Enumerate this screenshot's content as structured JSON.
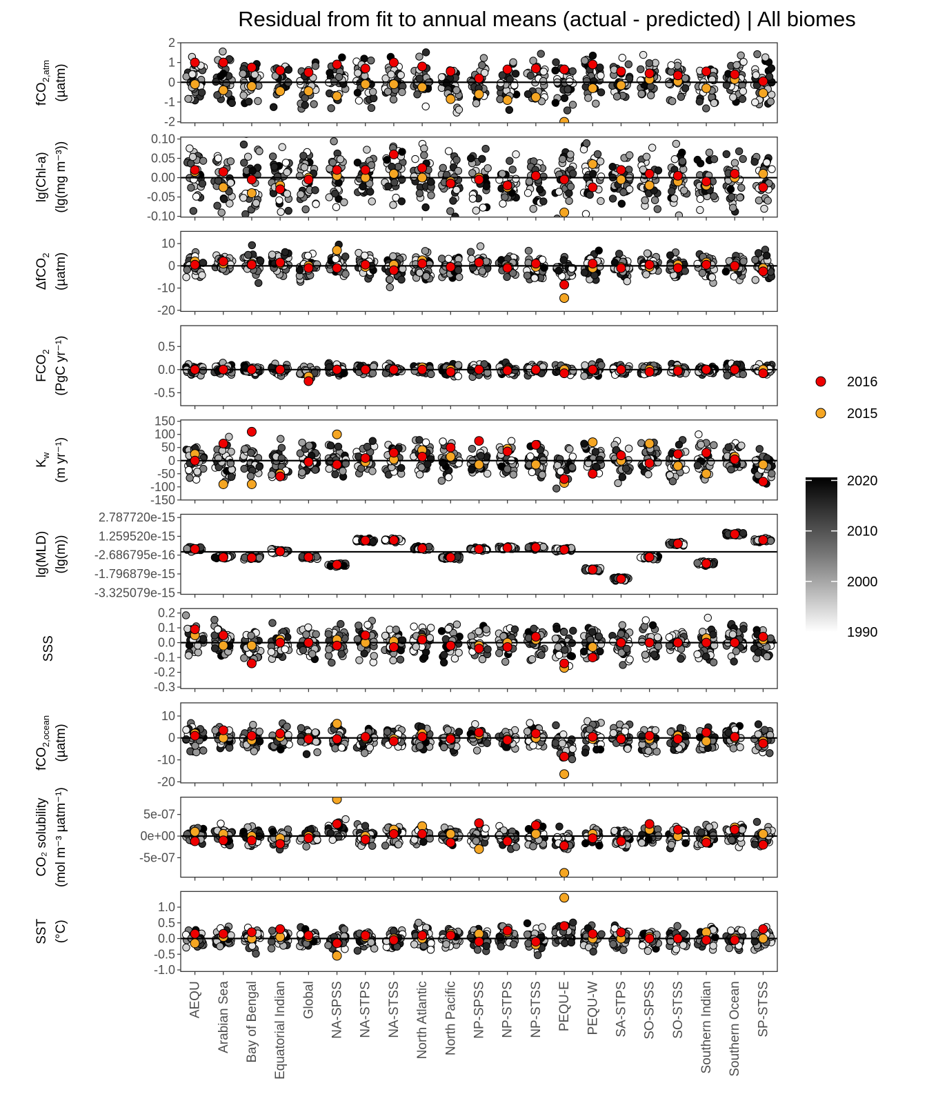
{
  "chart_data": {
    "type": "scatter",
    "title": "Residual from fit to annual means (actual - predicted) | All biomes",
    "categories": [
      "AEQU",
      "Arabian Sea",
      "Bay of Bengal",
      "Equatorial Indian",
      "Global",
      "NA-SPSS",
      "NA-STPS",
      "NA-STSS",
      "North Atlantic",
      "North Pacific",
      "NP-SPSS",
      "NP-STPS",
      "NP-STSS",
      "PEQU-E",
      "PEQU-W",
      "SA-STPS",
      "SO-SPSS",
      "SO-STSS",
      "Southern Indian",
      "Southern Ocean",
      "SP-STSS"
    ],
    "legend": {
      "highlight": [
        {
          "label": "2016",
          "color": "#ee0000"
        },
        {
          "label": "2015",
          "color": "#f5a623"
        }
      ],
      "colorbar": {
        "min": 1990,
        "max": 2020,
        "ticks": [
          "2020",
          "2010",
          "2000",
          "1990"
        ],
        "low_color": "#ffffff",
        "high_color": "#000000"
      }
    },
    "panels": [
      {
        "id": "fco2atm",
        "ylabel_main": "fCO",
        "ylabel_sub": "2,atm",
        "ylabel_unit": "(µatm)",
        "ylim": [
          -2.05,
          2.0
        ],
        "ticks": [
          2,
          1,
          0,
          -1,
          -2
        ],
        "tick_labels": [
          "2",
          "1",
          "0",
          "-1",
          "-2"
        ],
        "spread": 0.6,
        "y2016": [
          1.0,
          1.0,
          0.75,
          0.6,
          0.5,
          0.9,
          0.7,
          1.0,
          0.8,
          0.55,
          0.2,
          0.65,
          0.7,
          0.65,
          0.9,
          0.55,
          0.45,
          0.35,
          0.55,
          0.4,
          0.05
        ],
        "y2015": [
          -0.1,
          -0.4,
          -0.2,
          -0.45,
          -0.45,
          -0.7,
          -0.1,
          -0.1,
          -0.25,
          -0.85,
          -0.6,
          -0.9,
          -0.75,
          -2.0,
          -0.3,
          -0.15,
          0.15,
          0.05,
          -0.3,
          0.15,
          -0.55
        ]
      },
      {
        "id": "chl",
        "ylabel_main": "lg(Chl-a)",
        "ylabel_unit": "(lg(mg m⁻³))",
        "ylim": [
          -0.102,
          0.105
        ],
        "ticks": [
          0.1,
          0.05,
          0,
          -0.05,
          -0.1
        ],
        "tick_labels": [
          "0.10",
          "0.05",
          "0.00",
          "-0.05",
          "-0.10"
        ],
        "spread": 0.04,
        "y2016": [
          0.02,
          0.015,
          -0.005,
          -0.03,
          -0.005,
          0.02,
          0.02,
          0.06,
          0.025,
          -0.015,
          -0.005,
          -0.02,
          0.005,
          -0.005,
          -0.025,
          0.02,
          0.01,
          0.005,
          -0.01,
          0.01,
          -0.025
        ],
        "y2015": [
          0.015,
          -0.025,
          -0.04,
          -0.02,
          0.0,
          0.005,
          0.0,
          0.01,
          0.0,
          -0.01,
          0.0,
          -0.025,
          0.005,
          -0.09,
          0.035,
          -0.005,
          -0.02,
          -0.01,
          -0.02,
          0.0,
          0.01
        ]
      },
      {
        "id": "dfco2",
        "ylabel_main": "ΔfCO",
        "ylabel_sub": "2",
        "ylabel_unit": "(µatm)",
        "ylim": [
          -20.5,
          15.5
        ],
        "ticks": [
          10,
          0,
          -10,
          -20
        ],
        "tick_labels": [
          "10",
          "0",
          "-10",
          "-20"
        ],
        "spread": 3,
        "y2016": [
          0.5,
          2.0,
          0.5,
          1.5,
          -1.0,
          -1.0,
          0.5,
          -2.0,
          1.0,
          -0.5,
          1.5,
          -1.0,
          1.0,
          -8.5,
          1.0,
          -1.0,
          0.5,
          -1.0,
          0.5,
          0.0,
          -2.5
        ],
        "y2015": [
          2.0,
          1.0,
          1.0,
          1.0,
          0.0,
          7.0,
          -0.5,
          0.5,
          2.5,
          -0.5,
          1.5,
          -0.5,
          -0.5,
          -14.5,
          -1.0,
          -0.5,
          -0.5,
          0.5,
          1.5,
          -0.5,
          -1.0
        ]
      },
      {
        "id": "fco2",
        "ylabel_main": "FCO",
        "ylabel_sub": "2",
        "ylabel_unit": "(PgC yr⁻¹)",
        "ylim": [
          -0.78,
          0.95
        ],
        "ticks": [
          0.5,
          0,
          -0.5
        ],
        "tick_labels": [
          "0.5",
          "0.0",
          "-0.5"
        ],
        "spread": 0.06,
        "y2016": [
          0.0,
          0.0,
          0.0,
          0.0,
          -0.25,
          0.0,
          0.0,
          0.0,
          0.0,
          -0.05,
          0.0,
          -0.02,
          0.0,
          -0.08,
          0.0,
          0.0,
          -0.05,
          -0.03,
          0.0,
          0.0,
          -0.08
        ],
        "y2015": [
          0.0,
          0.0,
          0.0,
          0.0,
          -0.15,
          0.0,
          0.0,
          0.0,
          0.05,
          0.0,
          0.0,
          0.0,
          0.0,
          0.0,
          0.0,
          0.0,
          0.0,
          0.0,
          0.0,
          0.02,
          0.0
        ]
      },
      {
        "id": "kw",
        "ylabel_main": "K",
        "ylabel_sub": "w",
        "ylabel_unit": "(m yr⁻¹)",
        "ylim": [
          -150,
          155
        ],
        "ticks": [
          150,
          100,
          50,
          0,
          -50,
          -100,
          -150
        ],
        "tick_labels": [
          "150",
          "100",
          "50",
          "0",
          "-50",
          "-100",
          "-150"
        ],
        "spread": 35,
        "y2016": [
          0,
          65,
          110,
          -60,
          -5,
          -15,
          10,
          30,
          15,
          50,
          75,
          35,
          60,
          -70,
          -50,
          20,
          -10,
          25,
          30,
          5,
          -80
        ],
        "y2015": [
          25,
          -90,
          -90,
          -50,
          -5,
          100,
          -5,
          5,
          40,
          15,
          -15,
          45,
          -15,
          -85,
          70,
          0,
          65,
          -20,
          -50,
          15,
          -15
        ]
      },
      {
        "id": "mld",
        "ylabel_main": "lg(MLD)",
        "ylabel_unit": "(lg(m))",
        "ylim": [
          -3.45e-15,
          3.05e-15
        ],
        "ticks": [
          2.78772e-15,
          1.25952e-15,
          -2.686795e-16,
          -1.796879e-15,
          -3.325079e-15
        ],
        "tick_labels": [
          "2.787720e-15",
          "1.259520e-15",
          "-2.686795e-16",
          "-1.796879e-15",
          "-3.325079e-15"
        ],
        "spread": 1.6e-16,
        "y2016": [
          2.3e-16,
          -4.5e-16,
          -4.8e-16,
          3e-17,
          -4.3e-16,
          -1.05e-15,
          9.2e-16,
          9.5e-16,
          2.8e-16,
          -4.6e-16,
          2.2e-16,
          3.3e-16,
          3.6e-16,
          1.8e-16,
          -1.45e-15,
          -2.2e-15,
          -4.3e-16,
          6.6e-16,
          -9.5e-16,
          1.43e-15,
          9.6e-16
        ],
        "y2015": [
          2.3e-16,
          -4.5e-16,
          -4.8e-16,
          3e-17,
          -4.3e-16,
          -1.05e-15,
          9.2e-16,
          9.5e-16,
          2.8e-16,
          -4.6e-16,
          2.2e-16,
          3.3e-16,
          3.6e-16,
          1.8e-16,
          -1.45e-15,
          -2.2e-15,
          -4.3e-16,
          6.6e-16,
          -9.5e-16,
          1.43e-15,
          9.6e-16
        ]
      },
      {
        "id": "sss",
        "ylabel_main": "SSS",
        "ylim": [
          -0.31,
          0.23
        ],
        "ticks": [
          0.2,
          0.1,
          0,
          -0.1,
          -0.2,
          -0.3
        ],
        "tick_labels": [
          "0.2",
          "0.1",
          "0.0",
          "-0.1",
          "-0.2",
          "-0.3"
        ],
        "spread": 0.06,
        "y2016": [
          0.09,
          0.05,
          -0.14,
          0.0,
          0.0,
          -0.02,
          0.05,
          -0.03,
          0.02,
          -0.02,
          -0.04,
          -0.03,
          0.04,
          -0.14,
          -0.1,
          0.0,
          0.0,
          0.0,
          0.0,
          0.0,
          0.04
        ],
        "y2015": [
          0.05,
          -0.02,
          -0.02,
          0.02,
          0.0,
          0.02,
          0.0,
          0.01,
          0.03,
          -0.02,
          -0.02,
          0.0,
          0.02,
          -0.17,
          -0.03,
          0.0,
          0.0,
          0.0,
          0.03,
          0.0,
          0.02
        ]
      },
      {
        "id": "fco2ocean",
        "ylabel_main": "fCO",
        "ylabel_sub": "2,ocean",
        "ylabel_unit": "(µatm)",
        "ylim": [
          -20.5,
          16
        ],
        "ticks": [
          10,
          0,
          -10,
          -20
        ],
        "tick_labels": [
          "10",
          "0",
          "-10",
          "-20"
        ],
        "spread": 3,
        "y2016": [
          1.0,
          3.5,
          1.0,
          2.0,
          -0.5,
          -0.5,
          0.5,
          -1.5,
          0.5,
          -0.5,
          2.5,
          -1.0,
          2.0,
          -8.5,
          0.5,
          -0.5,
          1.0,
          -0.5,
          2.5,
          0.5,
          -2.5
        ],
        "y2015": [
          2.0,
          0.0,
          -1.0,
          0.5,
          0.0,
          6.5,
          0.0,
          -0.5,
          2.0,
          0.0,
          1.5,
          -0.5,
          0.0,
          -16.5,
          -0.5,
          0.0,
          -0.5,
          1.0,
          -1.5,
          0.0,
          -1.5
        ]
      },
      {
        "id": "sol",
        "ylabel_main": "CO₂ solubility",
        "ylabel_unit": "(mol m⁻³ µatm⁻¹)",
        "ylim": [
          -9.5e-07,
          9e-07
        ],
        "ticks": [
          5e-07,
          0,
          -5e-07
        ],
        "tick_labels": [
          "5e-07",
          "0e+00",
          "-5e-07"
        ],
        "spread": 1.2e-07,
        "y2016": [
          -1.2e-07,
          -1e-07,
          -1e-07,
          -1.8e-07,
          -5e-08,
          2.8e-07,
          -8e-08,
          5e-08,
          5e-08,
          -1.5e-07,
          3e-07,
          -1.2e-07,
          2.5e-07,
          -2.2e-07,
          -5e-08,
          -1.2e-07,
          2.8e-07,
          1.5e-07,
          -1.5e-07,
          1.5e-07,
          -2e-07
        ],
        "y2015": [
          1e-07,
          5e-08,
          0.0,
          -5e-08,
          0.0,
          8.5e-07,
          0.0,
          1.5e-07,
          2.3e-07,
          5e-08,
          -3e-07,
          -1e-07,
          5e-08,
          -8.5e-07,
          5e-08,
          -1e-07,
          1.5e-07,
          0.0,
          -1e-07,
          2e-07,
          5e-08
        ]
      },
      {
        "id": "sst",
        "ylabel_main": "SST",
        "ylabel_unit": "(°C)",
        "ylim": [
          -1.05,
          1.5
        ],
        "ticks": [
          1.0,
          0.5,
          0,
          -0.5,
          -1.0
        ],
        "tick_labels": [
          "1.0",
          "0.5",
          "0.0",
          "-0.5",
          "-1.0"
        ],
        "spread": 0.18,
        "y2016": [
          0.15,
          0.15,
          0.2,
          0.3,
          0.1,
          -0.15,
          0.1,
          -0.05,
          0.1,
          0.1,
          -0.1,
          0.25,
          -0.1,
          0.4,
          0.15,
          0.2,
          0.0,
          0.0,
          -0.05,
          -0.05,
          0.3
        ],
        "y2015": [
          -0.15,
          0.05,
          0.0,
          0.05,
          0.05,
          -0.55,
          0.05,
          0.0,
          0.0,
          0.15,
          0.15,
          0.2,
          -0.2,
          1.3,
          0.0,
          0.0,
          0.05,
          0.0,
          0.2,
          0.0,
          0.0
        ]
      }
    ]
  }
}
